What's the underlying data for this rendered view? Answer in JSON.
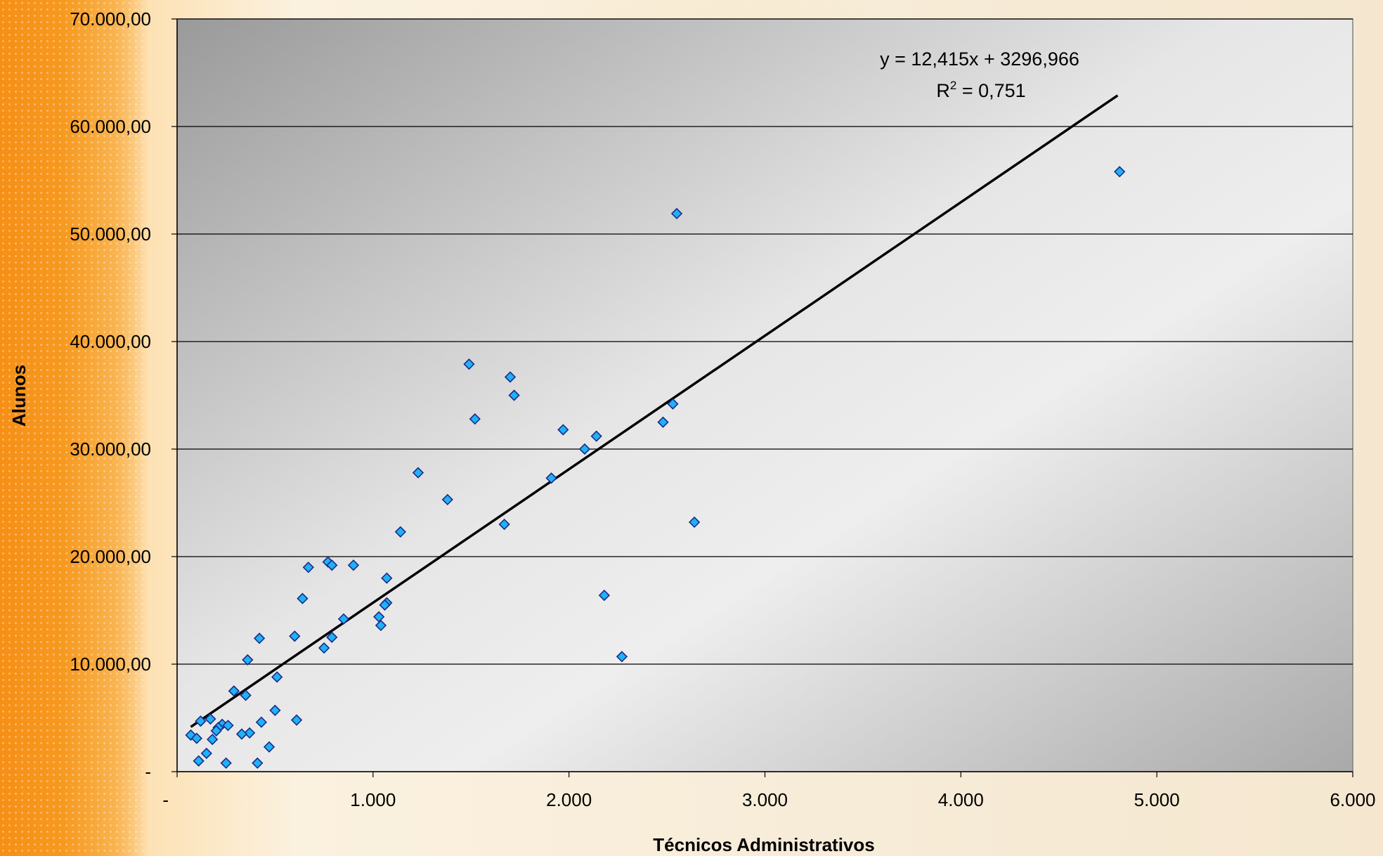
{
  "chart_data": {
    "type": "scatter",
    "title": "",
    "xlabel": "Técnicos Administrativos",
    "ylabel": "Alunos",
    "xlim": [
      0,
      6000
    ],
    "ylim": [
      0,
      70000
    ],
    "x_ticks": [
      0,
      1000,
      2000,
      3000,
      4000,
      5000,
      6000
    ],
    "x_tick_labels": [
      "-",
      "1.000",
      "2.000",
      "3.000",
      "4.000",
      "5.000",
      "6.000"
    ],
    "y_ticks": [
      0,
      10000,
      20000,
      30000,
      40000,
      50000,
      60000,
      70000
    ],
    "y_tick_labels": [
      "-",
      "10.000,00",
      "20.000,00",
      "30.000,00",
      "40.000,00",
      "50.000,00",
      "60.000,00",
      "70.000,00"
    ],
    "grid": "horizontal",
    "legend": "none",
    "marker_color": "#1fb2f5",
    "marker_edge_color": "#1a2a8a",
    "trendline": {
      "type": "linear",
      "slope": 12.415,
      "intercept": 3296.966,
      "x_range": [
        70,
        4800
      ],
      "color": "#000000",
      "equation_text": "y = 12,415x + 3296,966",
      "r2_prefix": "R",
      "r2_sup": "2",
      "r2_value_text": " = 0,751"
    },
    "points": [
      [
        4810,
        55800
      ],
      [
        2550,
        51900
      ],
      [
        1490,
        37900
      ],
      [
        1700,
        36700
      ],
      [
        1720,
        35000
      ],
      [
        2530,
        34200
      ],
      [
        1520,
        32800
      ],
      [
        2480,
        32500
      ],
      [
        1970,
        31800
      ],
      [
        2140,
        31200
      ],
      [
        2080,
        30000
      ],
      [
        1910,
        27300
      ],
      [
        1230,
        27800
      ],
      [
        1380,
        25300
      ],
      [
        1670,
        23000
      ],
      [
        2640,
        23200
      ],
      [
        1140,
        22300
      ],
      [
        770,
        19500
      ],
      [
        790,
        19200
      ],
      [
        900,
        19200
      ],
      [
        670,
        19000
      ],
      [
        1070,
        18000
      ],
      [
        2180,
        16400
      ],
      [
        640,
        16100
      ],
      [
        1070,
        15700
      ],
      [
        1060,
        15500
      ],
      [
        1030,
        14400
      ],
      [
        850,
        14200
      ],
      [
        1040,
        13600
      ],
      [
        600,
        12600
      ],
      [
        790,
        12500
      ],
      [
        420,
        12400
      ],
      [
        750,
        11500
      ],
      [
        2270,
        10700
      ],
      [
        360,
        10400
      ],
      [
        510,
        8800
      ],
      [
        290,
        7500
      ],
      [
        350,
        7100
      ],
      [
        500,
        5700
      ],
      [
        610,
        4800
      ],
      [
        170,
        4900
      ],
      [
        120,
        4700
      ],
      [
        430,
        4600
      ],
      [
        230,
        4400
      ],
      [
        260,
        4300
      ],
      [
        210,
        4100
      ],
      [
        200,
        3800
      ],
      [
        370,
        3600
      ],
      [
        330,
        3500
      ],
      [
        70,
        3400
      ],
      [
        100,
        3100
      ],
      [
        180,
        3000
      ],
      [
        470,
        2300
      ],
      [
        150,
        1700
      ],
      [
        110,
        1000
      ],
      [
        250,
        800
      ],
      [
        410,
        800
      ]
    ]
  }
}
